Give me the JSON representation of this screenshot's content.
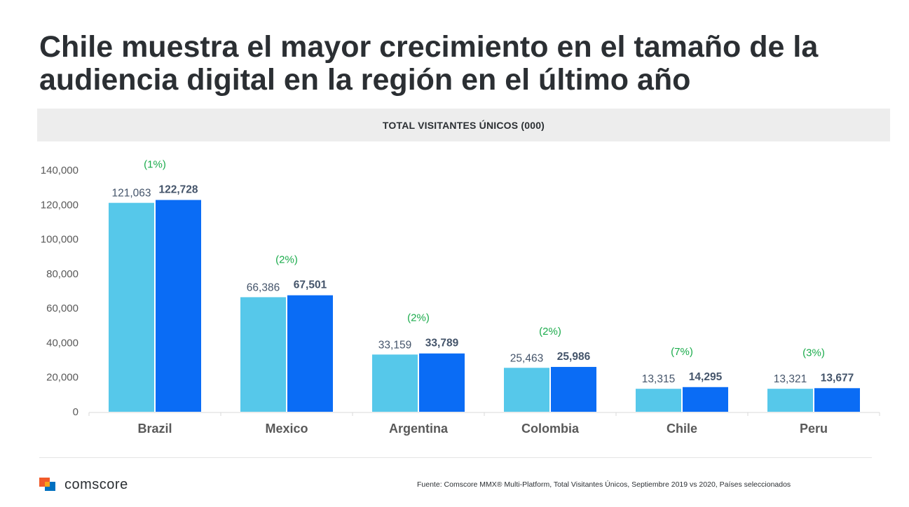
{
  "title": "Chile muestra el mayor crecimiento en el tamaño de la audiencia digital en la región en el último año",
  "chart_header": "TOTAL VISITANTES ÚNICOS (000)",
  "chart_data": {
    "type": "bar",
    "categories": [
      "Brazil",
      "Mexico",
      "Argentina",
      "Colombia",
      "Chile",
      "Peru"
    ],
    "series": [
      {
        "values": [
          121063,
          66386,
          33159,
          25463,
          13315,
          13321
        ],
        "color": "#56c8ea",
        "labels": [
          "121,063",
          "66,386",
          "33,159",
          "25,463",
          "13,315",
          "13,321"
        ]
      },
      {
        "values": [
          122728,
          67501,
          33789,
          25986,
          14295,
          13677
        ],
        "color": "#0a6cf5",
        "labels": [
          "122,728",
          "67,501",
          "33,789",
          "25,986",
          "14,295",
          "13,677"
        ]
      }
    ],
    "growth_labels": [
      "(1%)",
      "(2%)",
      "(2%)",
      "(2%)",
      "(7%)",
      "(3%)"
    ],
    "yticks": [
      "0",
      "20,000",
      "40,000",
      "60,000",
      "80,000",
      "100,000",
      "120,000",
      "140,000"
    ],
    "ylim": [
      0,
      140000
    ],
    "grid": false,
    "growth_color": "#1aab4b"
  },
  "footer": {
    "brand": "comscore",
    "source": "Fuente: Comscore MMX® Multi-Platform, Total Visitantes Únicos, Septiembre 2019 vs 2020, Países seleccionados"
  }
}
